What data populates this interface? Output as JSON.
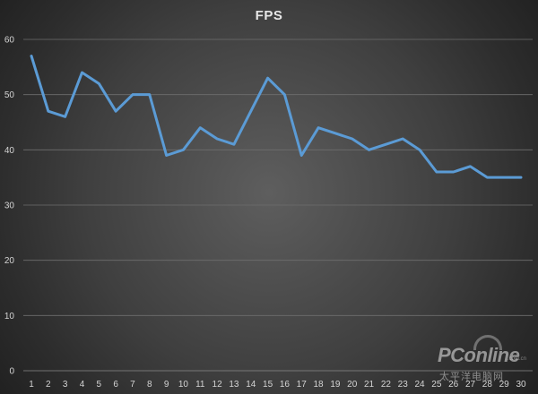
{
  "chart_data": {
    "type": "line",
    "title": "FPS",
    "xlabel": "",
    "ylabel": "",
    "categories": [
      "1",
      "2",
      "3",
      "4",
      "5",
      "6",
      "7",
      "8",
      "9",
      "10",
      "11",
      "12",
      "13",
      "14",
      "15",
      "16",
      "17",
      "18",
      "19",
      "20",
      "21",
      "22",
      "23",
      "24",
      "25",
      "26",
      "27",
      "28",
      "29",
      "30"
    ],
    "series": [
      {
        "values": [
          57,
          47,
          46,
          54,
          52,
          47,
          50,
          50,
          39,
          40,
          44,
          42,
          41,
          47,
          53,
          50,
          39,
          44,
          43,
          42,
          40,
          41,
          42,
          40,
          36,
          36,
          37,
          35,
          35,
          35
        ]
      }
    ],
    "ylim": [
      0,
      60
    ],
    "yticks": [
      0,
      10,
      20,
      30,
      40,
      50,
      60
    ],
    "grid": true,
    "line_color": "#5b9bd5"
  },
  "watermark": {
    "brand": "PConline",
    "domain": ".com.cn",
    "chinese": "太平洋电脑网"
  }
}
